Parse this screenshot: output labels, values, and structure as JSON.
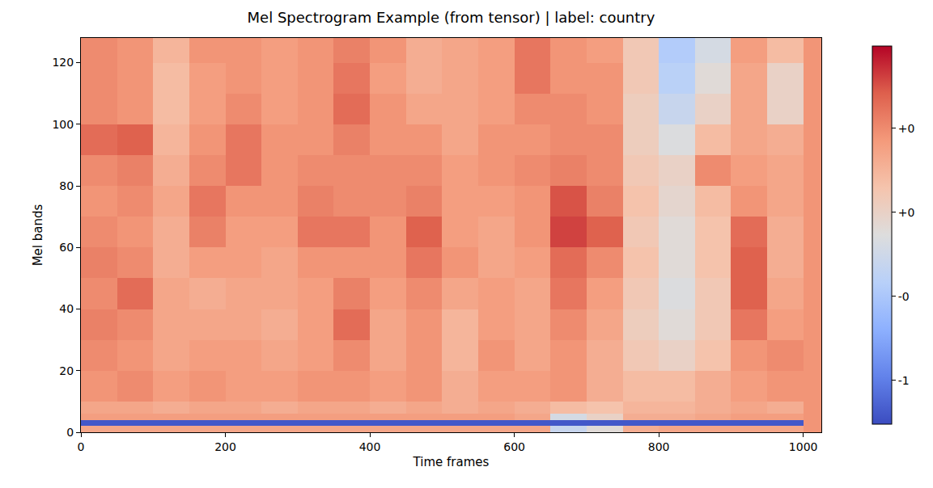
{
  "chart_data": {
    "type": "heatmap",
    "title": "Mel Spectrogram Example (from tensor) | label: country",
    "x_label": "Time frames",
    "y_label": "Mel bands",
    "x_edges": [
      0,
      50,
      100,
      150,
      200,
      250,
      300,
      350,
      400,
      450,
      500,
      550,
      600,
      650,
      700,
      750,
      800,
      850,
      900,
      950,
      1000,
      1025
    ],
    "y_edges": [
      0,
      2,
      4,
      6,
      10,
      20,
      30,
      40,
      50,
      60,
      70,
      80,
      90,
      100,
      110,
      120,
      128
    ],
    "z": [
      [
        0.35,
        0.35,
        0.35,
        0.35,
        0.35,
        0.35,
        0.35,
        0.35,
        0.35,
        0.35,
        0.35,
        0.35,
        0.35,
        -0.3,
        -0.1,
        0.3,
        0.35,
        0.35,
        0.35,
        0.35,
        0.45
      ],
      [
        -1.2,
        -1.2,
        -1.2,
        -1.2,
        -1.2,
        -1.2,
        -1.2,
        -1.2,
        -1.2,
        -1.2,
        -1.2,
        -1.2,
        -1.2,
        -1.2,
        -1.2,
        -1.2,
        -1.2,
        -1.2,
        -1.2,
        -1.2,
        0.45
      ],
      [
        0.4,
        0.4,
        0.4,
        0.4,
        0.4,
        0.4,
        0.4,
        0.4,
        0.4,
        0.4,
        0.4,
        0.4,
        0.35,
        -0.2,
        0.0,
        0.3,
        0.3,
        0.35,
        0.4,
        0.4,
        0.45
      ],
      [
        0.35,
        0.35,
        0.3,
        0.35,
        0.35,
        0.3,
        0.35,
        0.35,
        0.3,
        0.35,
        0.3,
        0.35,
        0.3,
        0.2,
        0.15,
        0.25,
        0.25,
        0.3,
        0.35,
        0.3,
        0.45
      ],
      [
        0.45,
        0.5,
        0.4,
        0.45,
        0.4,
        0.4,
        0.45,
        0.45,
        0.4,
        0.45,
        0.3,
        0.4,
        0.4,
        0.45,
        0.3,
        0.2,
        0.2,
        0.3,
        0.4,
        0.45,
        0.45
      ],
      [
        0.5,
        0.45,
        0.35,
        0.4,
        0.4,
        0.35,
        0.4,
        0.5,
        0.35,
        0.45,
        0.25,
        0.45,
        0.35,
        0.45,
        0.3,
        0.1,
        0.0,
        0.15,
        0.45,
        0.5,
        0.45
      ],
      [
        0.55,
        0.5,
        0.35,
        0.35,
        0.35,
        0.3,
        0.4,
        0.65,
        0.35,
        0.45,
        0.25,
        0.4,
        0.35,
        0.5,
        0.35,
        0.05,
        -0.1,
        0.1,
        0.6,
        0.4,
        0.45
      ],
      [
        0.5,
        0.65,
        0.35,
        0.3,
        0.35,
        0.35,
        0.4,
        0.55,
        0.4,
        0.5,
        0.35,
        0.4,
        0.35,
        0.6,
        0.4,
        0.1,
        -0.15,
        0.1,
        0.7,
        0.35,
        0.45
      ],
      [
        0.55,
        0.5,
        0.3,
        0.4,
        0.4,
        0.35,
        0.45,
        0.45,
        0.45,
        0.6,
        0.45,
        0.35,
        0.4,
        0.65,
        0.5,
        0.15,
        -0.1,
        0.15,
        0.7,
        0.3,
        0.45
      ],
      [
        0.5,
        0.45,
        0.3,
        0.55,
        0.4,
        0.4,
        0.6,
        0.6,
        0.45,
        0.7,
        0.4,
        0.35,
        0.45,
        0.8,
        0.7,
        0.1,
        -0.1,
        0.15,
        0.65,
        0.3,
        0.45
      ],
      [
        0.45,
        0.5,
        0.35,
        0.6,
        0.45,
        0.45,
        0.55,
        0.5,
        0.5,
        0.55,
        0.4,
        0.4,
        0.45,
        0.75,
        0.55,
        0.15,
        -0.05,
        0.2,
        0.45,
        0.35,
        0.45
      ],
      [
        0.5,
        0.55,
        0.3,
        0.5,
        0.6,
        0.45,
        0.5,
        0.5,
        0.5,
        0.5,
        0.4,
        0.45,
        0.5,
        0.55,
        0.5,
        0.1,
        0.0,
        0.5,
        0.4,
        0.35,
        0.45
      ],
      [
        0.65,
        0.7,
        0.25,
        0.45,
        0.6,
        0.45,
        0.45,
        0.55,
        0.45,
        0.45,
        0.35,
        0.45,
        0.45,
        0.5,
        0.5,
        0.05,
        -0.15,
        0.2,
        0.35,
        0.3,
        0.45
      ],
      [
        0.5,
        0.45,
        0.2,
        0.4,
        0.5,
        0.4,
        0.45,
        0.65,
        0.45,
        0.35,
        0.35,
        0.4,
        0.5,
        0.5,
        0.45,
        0.05,
        -0.3,
        0.0,
        0.35,
        0.0,
        0.45
      ],
      [
        0.5,
        0.45,
        0.2,
        0.4,
        0.45,
        0.4,
        0.45,
        0.6,
        0.4,
        0.3,
        0.35,
        0.4,
        0.6,
        0.45,
        0.45,
        0.1,
        -0.4,
        -0.1,
        0.35,
        0.0,
        0.45
      ],
      [
        0.5,
        0.45,
        0.25,
        0.45,
        0.45,
        0.4,
        0.45,
        0.55,
        0.45,
        0.3,
        0.35,
        0.4,
        0.6,
        0.45,
        0.4,
        0.1,
        -0.45,
        -0.2,
        0.4,
        0.2,
        0.45
      ]
    ],
    "xlim": [
      0,
      1025
    ],
    "ylim": [
      0,
      128
    ],
    "xticks": [
      0,
      200,
      400,
      600,
      800,
      1000
    ],
    "yticks": [
      0,
      20,
      40,
      60,
      80,
      100,
      120
    ],
    "colorbar": {
      "range": [
        -1.26,
        0.99
      ],
      "ticks": [
        {
          "value": 0.5,
          "label": "+0"
        },
        {
          "value": 0,
          "label": "+0"
        },
        {
          "value": -0.5,
          "label": "-0"
        },
        {
          "value": -1,
          "label": "-1"
        }
      ]
    },
    "grid": false
  }
}
